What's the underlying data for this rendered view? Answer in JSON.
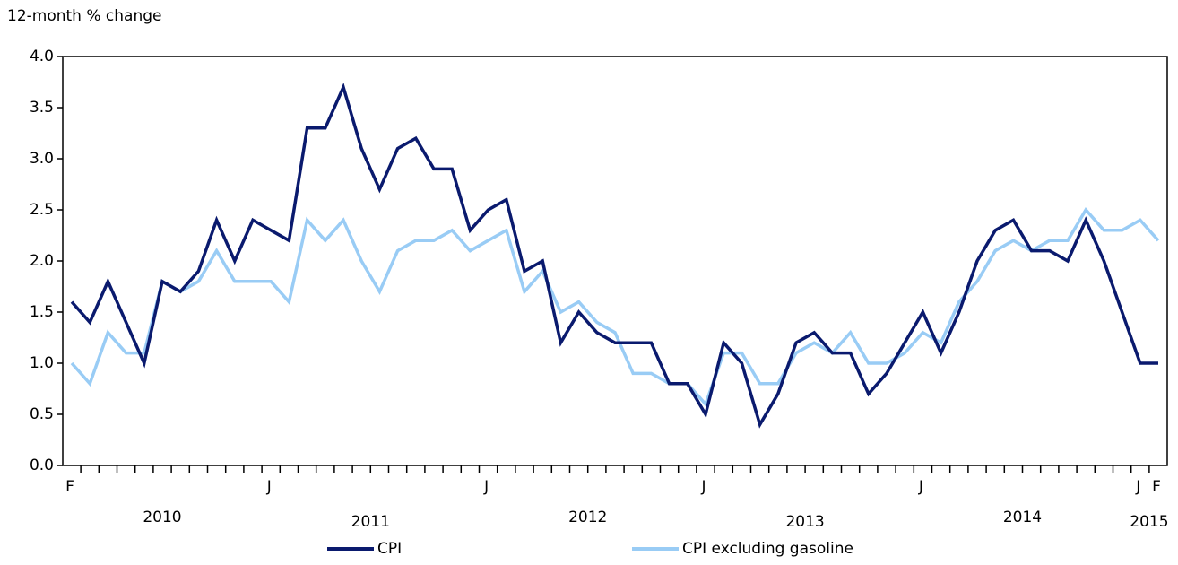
{
  "chart_data": {
    "type": "line",
    "y_axis_label": "12-month % change",
    "categories": [
      "F",
      null,
      null,
      null,
      null,
      null,
      null,
      null,
      null,
      null,
      null,
      "J",
      null,
      null,
      null,
      null,
      null,
      null,
      null,
      null,
      null,
      null,
      null,
      "J",
      null,
      null,
      null,
      null,
      null,
      null,
      null,
      null,
      null,
      null,
      null,
      "J",
      null,
      null,
      null,
      null,
      null,
      null,
      null,
      null,
      null,
      null,
      null,
      "J",
      null,
      null,
      null,
      null,
      null,
      null,
      null,
      null,
      null,
      null,
      null,
      "J",
      "F"
    ],
    "year_labels": [
      "2010",
      "2011",
      "2012",
      "2013",
      "2014",
      "2015"
    ],
    "series": [
      {
        "name": "CPI",
        "color": "#0a1a6e",
        "values": [
          1.6,
          1.4,
          1.8,
          1.4,
          1.0,
          1.8,
          1.7,
          1.9,
          2.4,
          2.0,
          2.4,
          2.3,
          2.2,
          3.3,
          3.3,
          3.7,
          3.1,
          2.7,
          3.1,
          3.2,
          2.9,
          2.9,
          2.3,
          2.5,
          2.6,
          1.9,
          2.0,
          1.2,
          1.5,
          1.3,
          1.2,
          1.2,
          1.2,
          0.8,
          0.8,
          0.5,
          1.2,
          1.0,
          0.4,
          0.7,
          1.2,
          1.3,
          1.1,
          1.1,
          0.7,
          0.9,
          1.2,
          1.5,
          1.1,
          1.5,
          2.0,
          2.3,
          2.4,
          2.1,
          2.1,
          2.0,
          2.4,
          2.0,
          1.5,
          1.0,
          1.0
        ]
      },
      {
        "name": "CPI excluding gasoline",
        "color": "#99ccf5",
        "values": [
          1.0,
          0.8,
          1.3,
          1.1,
          1.1,
          1.8,
          1.7,
          1.8,
          2.1,
          1.8,
          1.8,
          1.8,
          1.6,
          2.4,
          2.2,
          2.4,
          2.0,
          1.7,
          2.1,
          2.2,
          2.2,
          2.3,
          2.1,
          2.2,
          2.3,
          1.7,
          1.9,
          1.5,
          1.6,
          1.4,
          1.3,
          0.9,
          0.9,
          0.8,
          0.8,
          0.6,
          1.1,
          1.1,
          0.8,
          0.8,
          1.1,
          1.2,
          1.1,
          1.3,
          1.0,
          1.0,
          1.1,
          1.3,
          1.2,
          1.6,
          1.8,
          2.1,
          2.2,
          2.1,
          2.2,
          2.2,
          2.5,
          2.3,
          2.3,
          2.4,
          2.2
        ]
      }
    ],
    "ylim": [
      0,
      4
    ],
    "yticks": [
      {
        "value": 0,
        "label": "0.0"
      },
      0.5,
      {
        "value": 1,
        "label": "1.0"
      },
      1.5,
      {
        "value": 2,
        "label": "2.0"
      },
      2.5,
      {
        "value": 3,
        "label": "3.0"
      },
      3.5,
      {
        "value": 4,
        "label": "4.0"
      }
    ],
    "grid": false
  }
}
